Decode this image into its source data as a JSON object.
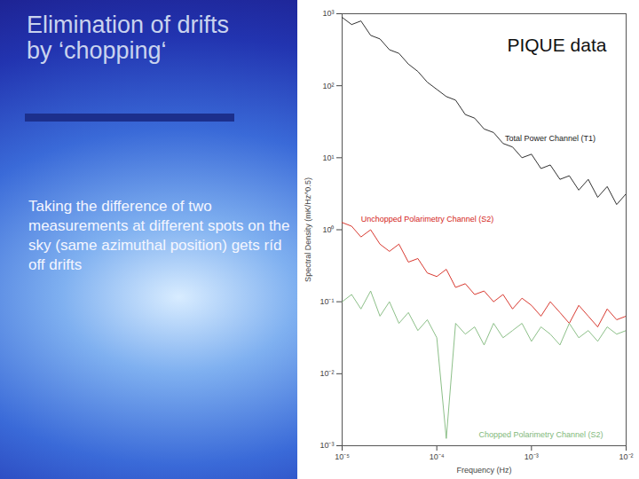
{
  "slide": {
    "title": "Elimination of drifts by ‘chopping‘",
    "text": "Taking the difference of two measurements at different spots on the sky (same azimuthal position) gets ríd off drifts"
  },
  "chart_data": {
    "type": "line",
    "title": "PIQUE data",
    "log": true,
    "x_label": "Frequency (Hz)",
    "y_label": "Spectral Density (mK/Hz^0.5)",
    "xlim": [
      1e-05,
      0.01
    ],
    "ylim": [
      0.001,
      1000.0
    ],
    "xticks": [
      {
        "value": 1e-05,
        "label": "10⁻⁵"
      },
      {
        "value": 0.0001,
        "label": "10⁻⁴"
      },
      {
        "value": 0.001,
        "label": "10⁻³"
      },
      {
        "value": 0.01,
        "label": "10⁻²"
      }
    ],
    "yticks": [
      {
        "value": 0.001,
        "label": "10⁻³"
      },
      {
        "value": 0.01,
        "label": "10⁻²"
      },
      {
        "value": 0.1,
        "label": "10⁻¹"
      },
      {
        "value": 1,
        "label": "10⁰"
      },
      {
        "value": 10,
        "label": "10¹"
      },
      {
        "value": 100,
        "label": "10²"
      },
      {
        "value": 1000,
        "label": "10³"
      }
    ],
    "grid": false,
    "x": [
      1e-05,
      1.26e-05,
      1.58e-05,
      2e-05,
      2.51e-05,
      3.16e-05,
      3.98e-05,
      5.01e-05,
      6.31e-05,
      7.94e-05,
      0.0001,
      0.000126,
      0.000158,
      0.0002,
      0.000251,
      0.000316,
      0.000398,
      0.000501,
      0.000631,
      0.000794,
      0.001,
      0.00126,
      0.00158,
      0.002,
      0.00251,
      0.00316,
      0.00398,
      0.00501,
      0.00631,
      0.00794,
      0.01
    ],
    "series": [
      {
        "name": "Total Power Channel (T1)",
        "color": "#1a1a1a",
        "values": [
          891,
          708,
          794,
          501,
          447,
          316,
          282,
          200,
          158,
          112,
          89.1,
          70.8,
          63.1,
          39.8,
          35.5,
          25.1,
          22.4,
          15.8,
          14.1,
          10,
          11.2,
          7.08,
          7.94,
          5.01,
          5.62,
          3.55,
          5.01,
          2.82,
          3.98,
          2.24,
          3.16
        ]
      },
      {
        "name": "Unchopped Polarimetry Channel (S2)",
        "color": "#d4241a",
        "values": [
          1.26,
          1.12,
          0.794,
          1.0,
          0.631,
          0.501,
          0.631,
          0.355,
          0.398,
          0.251,
          0.224,
          0.282,
          0.158,
          0.178,
          0.126,
          0.141,
          0.1,
          0.126,
          0.0794,
          0.112,
          0.0891,
          0.0631,
          0.1,
          0.0708,
          0.0501,
          0.0891,
          0.0631,
          0.0447,
          0.0794,
          0.0562,
          0.0631
        ]
      },
      {
        "name": "Chopped Polarimetry Channel (S2)",
        "color": "#7fb87a",
        "values": [
          0.1,
          0.126,
          0.0794,
          0.141,
          0.0631,
          0.1,
          0.0501,
          0.0708,
          0.0398,
          0.0562,
          0.0316,
          0.00126,
          0.0501,
          0.0355,
          0.0447,
          0.0251,
          0.0501,
          0.0316,
          0.0398,
          0.0501,
          0.0282,
          0.0447,
          0.0355,
          0.0251,
          0.0501,
          0.0316,
          0.0398,
          0.0282,
          0.0447,
          0.0355,
          0.0398
        ]
      }
    ]
  }
}
